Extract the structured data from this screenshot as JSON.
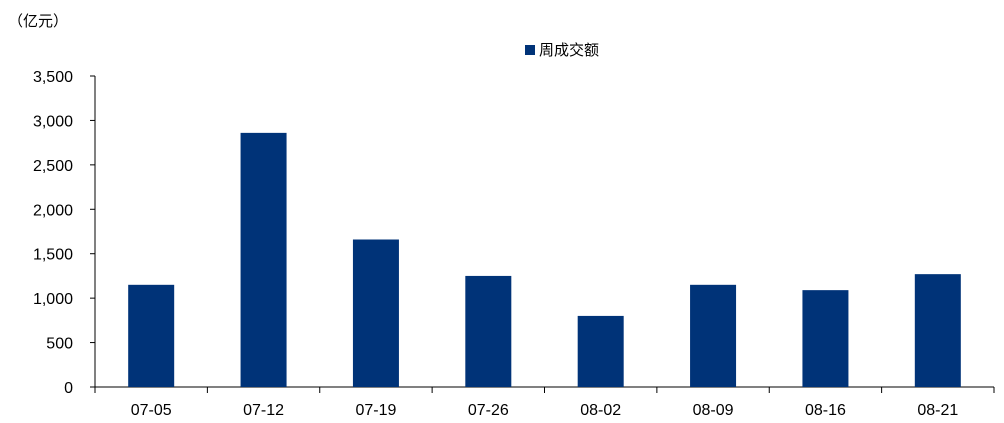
{
  "chart_data": {
    "type": "bar",
    "unit": "（亿元）",
    "categories": [
      "07-05",
      "07-12",
      "07-19",
      "07-26",
      "08-02",
      "08-09",
      "08-16",
      "08-21"
    ],
    "series": [
      {
        "name": "周成交额",
        "values": [
          1150,
          2860,
          1660,
          1250,
          800,
          1150,
          1090,
          1270
        ]
      }
    ],
    "ylim": [
      0,
      3500
    ],
    "yticks": [
      0,
      500,
      1000,
      1500,
      2000,
      2500,
      3000,
      3500
    ],
    "ytick_labels": [
      "0",
      "500",
      "1,000",
      "1,500",
      "2,000",
      "2,500",
      "3,000",
      "3,500"
    ],
    "bar_color": "#003378",
    "legend_position": "top-center",
    "grid": false
  }
}
